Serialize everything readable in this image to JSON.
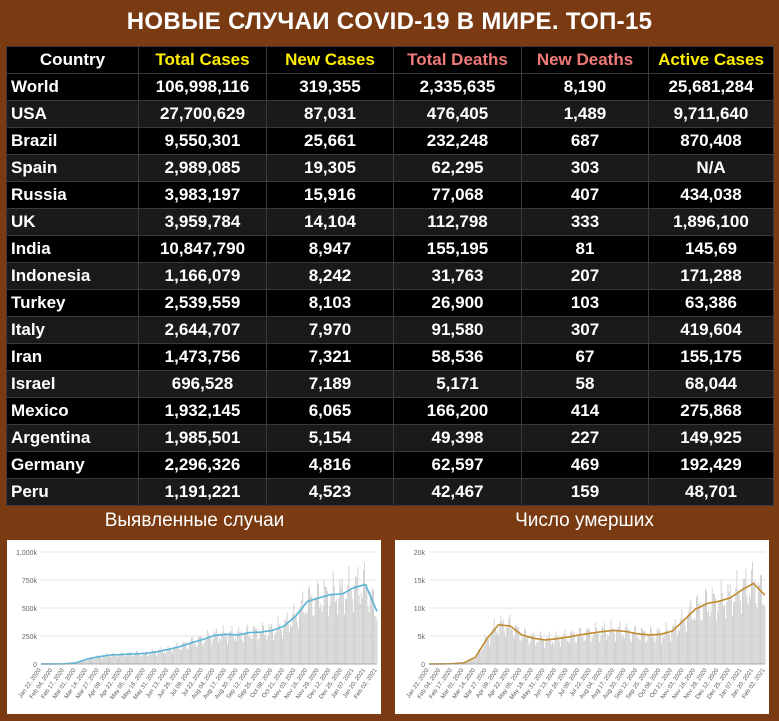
{
  "title": "НОВЫЕ СЛУЧАИ COVID-19 В МИРЕ. ТОП-15",
  "colors": {
    "header_white": "#ffffff",
    "header_yellow": "#ffee00",
    "header_red": "#f07a7a",
    "chart1_line": "#5ab4d6",
    "chart2_line": "#c08a2e",
    "bars": "#c8c8c8"
  },
  "table": {
    "headers": [
      "Country",
      "Total Cases",
      "New Cases",
      "Total Deaths",
      "New Deaths",
      "Active Cases"
    ],
    "header_colors": [
      "#ffffff",
      "#ffee00",
      "#ffee00",
      "#f07a7a",
      "#f07a7a",
      "#ffee00"
    ],
    "rows": [
      [
        "World",
        "106,998,116",
        "319,355",
        "2,335,635",
        "8,190",
        "25,681,284"
      ],
      [
        "USA",
        "27,700,629",
        "87,031",
        "476,405",
        "1,489",
        "9,711,640"
      ],
      [
        "Brazil",
        "9,550,301",
        "25,661",
        "232,248",
        "687",
        "870,408"
      ],
      [
        "Spain",
        "2,989,085",
        "19,305",
        "62,295",
        "303",
        "N/A"
      ],
      [
        "Russia",
        "3,983,197",
        "15,916",
        "77,068",
        "407",
        "434,038"
      ],
      [
        "UK",
        "3,959,784",
        "14,104",
        "112,798",
        "333",
        "1,896,100"
      ],
      [
        "India",
        "10,847,790",
        "8,947",
        "155,195",
        "81",
        "145,69"
      ],
      [
        "Indonesia",
        "1,166,079",
        "8,242",
        "31,763",
        "207",
        "171,288"
      ],
      [
        "Turkey",
        "2,539,559",
        "8,103",
        "26,900",
        "103",
        "63,386"
      ],
      [
        "Italy",
        "2,644,707",
        "7,970",
        "91,580",
        "307",
        "419,604"
      ],
      [
        "Iran",
        "1,473,756",
        "7,321",
        "58,536",
        "67",
        "155,175"
      ],
      [
        "Israel",
        "696,528",
        "7,189",
        "5,171",
        "58",
        "68,044"
      ],
      [
        "Mexico",
        "1,932,145",
        "6,065",
        "166,200",
        "414",
        "275,868"
      ],
      [
        "Argentina",
        "1,985,501",
        "5,154",
        "49,398",
        "227",
        "149,925"
      ],
      [
        "Germany",
        "2,296,326",
        "4,816",
        "62,597",
        "469",
        "192,429"
      ],
      [
        "Peru",
        "1,191,221",
        "4,523",
        "42,467",
        "159",
        "48,701"
      ]
    ]
  },
  "charts": {
    "cases_title": "Выявленные случаи",
    "deaths_title": "Число умерших"
  },
  "chart_data": [
    {
      "type": "bar",
      "title": "Выявленные случаи",
      "ytick_labels": [
        "0",
        "250k",
        "500k",
        "750k",
        "1,000k"
      ],
      "ylim": [
        0,
        1000000
      ],
      "x_tick_labels": [
        "Jan 22, 2020",
        "Feb 04, 2020",
        "Feb 17, 2020",
        "Mar 01, 2020",
        "Mar 14, 2020",
        "Mar 27, 2020",
        "Apr 09, 2020",
        "Apr 22, 2020",
        "May 05, 2020",
        "May 18, 2020",
        "May 31, 2020",
        "Jun 13, 2020",
        "Jun 26, 2020",
        "Jul 09, 2020",
        "Jul 22, 2020",
        "Aug 04, 2020",
        "Aug 17, 2020",
        "Aug 30, 2020",
        "Sep 12, 2020",
        "Sep 25, 2020",
        "Oct 08, 2020",
        "Oct 21, 2020",
        "Nov 03, 2020",
        "Nov 16, 2020",
        "Nov 29, 2020",
        "Dec 12, 2020",
        "Dec 25, 2020",
        "Jan 07, 2021",
        "Jan 20, 2021",
        "Feb 02, 2021"
      ],
      "series": [
        {
          "kind": "line",
          "values": [
            500,
            1000,
            2000,
            10000,
            45000,
            65000,
            80000,
            85000,
            90000,
            95000,
            110000,
            130000,
            155000,
            190000,
            220000,
            255000,
            265000,
            260000,
            280000,
            285000,
            300000,
            340000,
            430000,
            560000,
            590000,
            620000,
            625000,
            680000,
            710000,
            470000
          ]
        }
      ]
    },
    {
      "type": "bar",
      "title": "Число умерших",
      "ytick_labels": [
        "0",
        "5k",
        "10k",
        "15k",
        "20k"
      ],
      "ylim": [
        0,
        20000
      ],
      "x_tick_labels": [
        "Jan 22, 2020",
        "Feb 04, 2020",
        "Feb 17, 2020",
        "Mar 01, 2020",
        "Mar 14, 2020",
        "Mar 27, 2020",
        "Apr 09, 2020",
        "Apr 22, 2020",
        "May 05, 2020",
        "May 18, 2020",
        "May 31, 2020",
        "Jun 13, 2020",
        "Jun 26, 2020",
        "Jul 09, 2020",
        "Jul 22, 2020",
        "Aug 04, 2020",
        "Aug 17, 2020",
        "Aug 30, 2020",
        "Sep 12, 2020",
        "Sep 25, 2020",
        "Oct 08, 2020",
        "Oct 21, 2020",
        "Nov 03, 2020",
        "Nov 16, 2020",
        "Nov 29, 2020",
        "Dec 12, 2020",
        "Dec 25, 2020",
        "Jan 07, 2021",
        "Jan 20, 2021",
        "Feb 02, 2021"
      ],
      "series": [
        {
          "kind": "line",
          "values": [
            10,
            20,
            60,
            200,
            1200,
            4500,
            7000,
            6800,
            5200,
            4600,
            4300,
            4500,
            4800,
            5200,
            5500,
            5800,
            6000,
            5800,
            5400,
            5200,
            5300,
            5900,
            7800,
            9800,
            10800,
            11200,
            11800,
            13200,
            14400,
            12300
          ]
        }
      ]
    }
  ]
}
